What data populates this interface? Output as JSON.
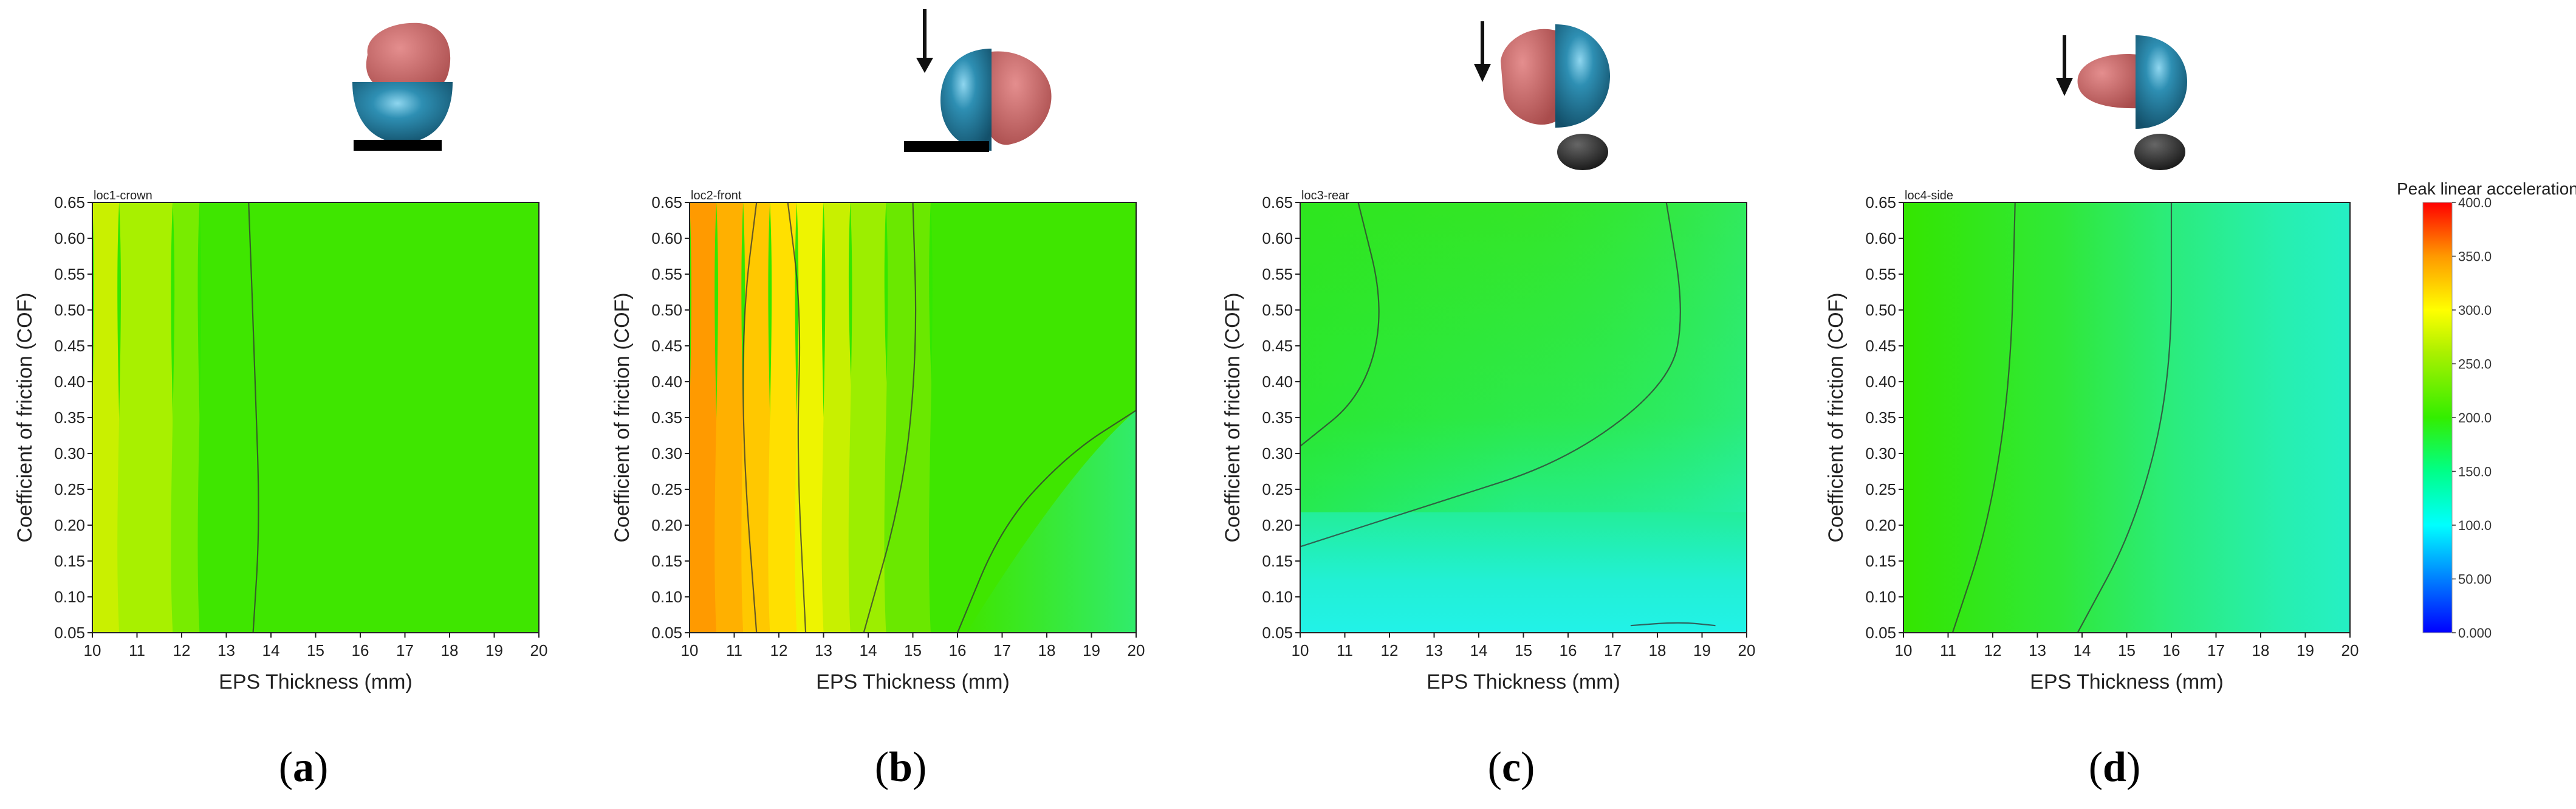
{
  "chart_data": [
    {
      "type": "heatmap",
      "plot_label": "loc1-crown",
      "panel": "(a)",
      "panel_prefix": "(",
      "panel_letter": "a",
      "panel_suffix": ")",
      "xlabel": "EPS Thickness (mm)",
      "ylabel": "Coefficient of friction (COF)",
      "xlim": [
        10,
        20
      ],
      "ylim": [
        0.05,
        0.65
      ],
      "xticks": [
        "10",
        "11",
        "12",
        "13",
        "14",
        "15",
        "16",
        "17",
        "18",
        "19",
        "20"
      ],
      "yticks": [
        "0.05",
        "0.10",
        "0.15",
        "0.20",
        "0.25",
        "0.30",
        "0.35",
        "0.40",
        "0.45",
        "0.50",
        "0.55",
        "0.60",
        "0.65"
      ],
      "impact_arrow": false,
      "estimated_field": "Peak linear acceleration falls from ~275 g at 10 mm to ~220 g by 14 mm and stays ~210-220 g to 20 mm; nearly independent of COF",
      "contour_bands": [
        {
          "x_left": 10.0,
          "x_right": 10.6,
          "color": "#c9f000"
        },
        {
          "x_left": 10.6,
          "x_right": 11.8,
          "color": "#a8f000"
        },
        {
          "x_left": 11.8,
          "x_right": 12.4,
          "color": "#78ec00"
        },
        {
          "x_left": 12.4,
          "x_right": 20.0,
          "color": "#3fe600"
        }
      ],
      "contour_lines": [
        {
          "points": [
            [
              13.6,
              0.05
            ],
            [
              13.75,
              0.2
            ],
            [
              13.65,
              0.4
            ],
            [
              13.5,
              0.65
            ]
          ]
        }
      ]
    },
    {
      "type": "heatmap",
      "plot_label": "loc2-front",
      "panel": "(b)",
      "panel_prefix": "(",
      "panel_letter": "b",
      "panel_suffix": ")",
      "xlabel": "EPS Thickness (mm)",
      "ylabel": "Coefficient of friction (COF)",
      "xlim": [
        10,
        20
      ],
      "ylim": [
        0.05,
        0.65
      ],
      "xticks": [
        "10",
        "11",
        "12",
        "13",
        "14",
        "15",
        "16",
        "17",
        "18",
        "19",
        "20"
      ],
      "yticks": [
        "0.05",
        "0.10",
        "0.15",
        "0.20",
        "0.25",
        "0.30",
        "0.35",
        "0.40",
        "0.45",
        "0.50",
        "0.55",
        "0.60",
        "0.65"
      ],
      "impact_arrow": true,
      "estimated_field": "Peak linear acceleration ~330 g at 10 mm decreasing to ~200 g at 20 mm; slightly lower at low COF and thick EPS",
      "contour_bands": [
        {
          "x_left": 10.0,
          "x_right": 10.6,
          "color": "#ff9a00"
        },
        {
          "x_left": 10.6,
          "x_right": 11.2,
          "color": "#ffb000"
        },
        {
          "x_left": 11.2,
          "x_right": 11.8,
          "color": "#ffc800"
        },
        {
          "x_left": 11.8,
          "x_right": 12.4,
          "color": "#ffe000"
        },
        {
          "x_left": 12.4,
          "x_right": 13.0,
          "color": "#eef400"
        },
        {
          "x_left": 13.0,
          "x_right": 13.6,
          "color": "#c8f000"
        },
        {
          "x_left": 13.6,
          "x_right": 14.4,
          "color": "#9cee00"
        },
        {
          "x_left": 14.4,
          "x_right": 15.4,
          "color": "#6ae800"
        },
        {
          "x_left": 15.4,
          "x_right": 20.0,
          "color": "#3fe600"
        }
      ],
      "contour_lines": [
        {
          "points": [
            [
              11.5,
              0.05
            ],
            [
              11.2,
              0.3
            ],
            [
              11.2,
              0.5
            ],
            [
              11.5,
              0.65
            ]
          ]
        },
        {
          "points": [
            [
              12.6,
              0.05
            ],
            [
              12.4,
              0.3
            ],
            [
              12.5,
              0.5
            ],
            [
              12.2,
              0.65
            ]
          ]
        },
        {
          "points": [
            [
              13.9,
              0.05
            ],
            [
              14.8,
              0.25
            ],
            [
              15.1,
              0.45
            ],
            [
              15.0,
              0.65
            ]
          ]
        },
        {
          "points": [
            [
              16.0,
              0.05
            ],
            [
              17.0,
              0.2
            ],
            [
              18.5,
              0.3
            ],
            [
              20.0,
              0.36
            ]
          ]
        }
      ]
    },
    {
      "type": "heatmap",
      "plot_label": "loc3-rear",
      "panel": "(c)",
      "panel_prefix": "(",
      "panel_letter": "c",
      "panel_suffix": ")",
      "xlabel": "EPS Thickness (mm)",
      "ylabel": "Coefficient of friction (COF)",
      "xlim": [
        10,
        20
      ],
      "ylim": [
        0.05,
        0.65
      ],
      "xticks": [
        "10",
        "11",
        "12",
        "13",
        "14",
        "15",
        "16",
        "17",
        "18",
        "19",
        "20"
      ],
      "yticks": [
        "0.05",
        "0.10",
        "0.15",
        "0.20",
        "0.25",
        "0.30",
        "0.35",
        "0.40",
        "0.45",
        "0.50",
        "0.55",
        "0.60",
        "0.65"
      ],
      "impact_arrow": true,
      "estimated_field": "Peak linear acceleration ~200 g at mid/high COF and thin EPS, decreasing to ~110 g at low COF (0.05-0.15) across all thicknesses",
      "contour_bands": [],
      "contour_lines": [
        {
          "points": [
            [
              10.0,
              0.31
            ],
            [
              11.4,
              0.38
            ],
            [
              11.9,
              0.5
            ],
            [
              11.3,
              0.65
            ]
          ]
        },
        {
          "points": [
            [
              10.0,
              0.17
            ],
            [
              13.0,
              0.23
            ],
            [
              16.0,
              0.29
            ],
            [
              18.3,
              0.4
            ],
            [
              18.6,
              0.5
            ],
            [
              18.2,
              0.65
            ]
          ]
        },
        {
          "points": [
            [
              17.4,
              0.06
            ],
            [
              18.5,
              0.065
            ],
            [
              19.3,
              0.06
            ]
          ]
        }
      ]
    },
    {
      "type": "heatmap",
      "plot_label": "loc4-side",
      "panel": "(d)",
      "panel_prefix": "(",
      "panel_letter": "d",
      "panel_suffix": ")",
      "xlabel": "EPS Thickness (mm)",
      "ylabel": "Coefficient of friction (COF)",
      "xlim": [
        10,
        20
      ],
      "ylim": [
        0.05,
        0.65
      ],
      "xticks": [
        "10",
        "11",
        "12",
        "13",
        "14",
        "15",
        "16",
        "17",
        "18",
        "19",
        "20"
      ],
      "yticks": [
        "0.05",
        "0.10",
        "0.15",
        "0.20",
        "0.25",
        "0.30",
        "0.35",
        "0.40",
        "0.45",
        "0.50",
        "0.55",
        "0.60",
        "0.65"
      ],
      "impact_arrow": true,
      "estimated_field": "Peak linear acceleration ~210 g at 10 mm decreasing to ~150 g at 20 mm; lowest at low COF and thick EPS",
      "contour_bands": [],
      "contour_lines": [
        {
          "points": [
            [
              11.1,
              0.05
            ],
            [
              11.9,
              0.2
            ],
            [
              12.4,
              0.4
            ],
            [
              12.5,
              0.65
            ]
          ]
        },
        {
          "points": [
            [
              13.9,
              0.05
            ],
            [
              15.2,
              0.2
            ],
            [
              16.0,
              0.4
            ],
            [
              16.0,
              0.65
            ]
          ]
        }
      ]
    }
  ],
  "colorbar": {
    "title": "Peak linear acceleration (g)",
    "ticks": [
      "0.000",
      "50.00",
      "100.0",
      "150.0",
      "200.0",
      "250.0",
      "300.0",
      "350.0",
      "400.0"
    ],
    "range": [
      0,
      400
    ],
    "stops": [
      {
        "value": 0,
        "color": "#0000ff"
      },
      {
        "value": 100,
        "color": "#00ffff"
      },
      {
        "value": 150,
        "color": "#00ff88"
      },
      {
        "value": 200,
        "color": "#33ee00"
      },
      {
        "value": 260,
        "color": "#aaf000"
      },
      {
        "value": 300,
        "color": "#ffff00"
      },
      {
        "value": 350,
        "color": "#ff9900"
      },
      {
        "value": 400,
        "color": "#ff0000"
      }
    ]
  },
  "colors": {
    "head_model": "#c96666",
    "helmet": "#1f6f8b",
    "anvil": "#000000",
    "contour_line": "#333333",
    "cyan_low": "#22f2e8",
    "green_mid": "#33e700"
  }
}
